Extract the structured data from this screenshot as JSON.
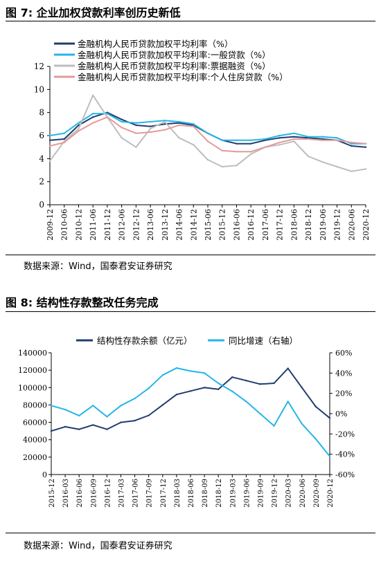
{
  "figure7": {
    "title": "图 7: 企业加权贷款利率创历史新低",
    "source": "数据来源：Wind，国泰君安证券研究",
    "chart_data": {
      "type": "line",
      "ylim": [
        0,
        12
      ],
      "y_ticks": [
        "0",
        "2",
        "4",
        "6",
        "8",
        "10",
        "12"
      ],
      "x_tick_labels": [
        "2009-12",
        "2010-06",
        "2010-12",
        "2011-06",
        "2011-12",
        "2012-06",
        "2012-12",
        "2013-06",
        "2013-12",
        "2014-06",
        "2014-12",
        "2015-06",
        "2015-12",
        "2016-06",
        "2016-12",
        "2017-06",
        "2017-12",
        "2018-06",
        "2018-12",
        "2019-06",
        "2019-12",
        "2020-06",
        "2020-12"
      ],
      "legend_placement": "top-left",
      "series": [
        {
          "name": "金融机构人民币贷款加权平均利率（%）",
          "color": "#1f3c6e",
          "values": [
            5.6,
            5.7,
            6.9,
            7.6,
            8.0,
            7.4,
            6.9,
            6.8,
            7.0,
            7.1,
            6.9,
            6.2,
            5.6,
            5.3,
            5.3,
            5.6,
            5.8,
            5.9,
            5.8,
            5.7,
            5.6,
            5.1,
            5.0
          ]
        },
        {
          "name": "金融机构人民币贷款加权平均利率:一般贷款（%）",
          "color": "#25b5e8",
          "values": [
            6.0,
            6.2,
            7.1,
            7.9,
            7.9,
            7.2,
            7.1,
            7.2,
            7.3,
            7.2,
            7.0,
            6.2,
            5.6,
            5.6,
            5.6,
            5.7,
            6.0,
            6.2,
            5.9,
            5.9,
            5.8,
            5.3,
            5.3
          ]
        },
        {
          "name": "金融机构人民币贷款加权平均利率:票据融资（%）",
          "color": "#bdbdbd",
          "values": [
            3.8,
            5.5,
            6.6,
            9.5,
            7.6,
            5.8,
            5.0,
            6.6,
            7.2,
            5.8,
            5.2,
            3.9,
            3.3,
            3.4,
            4.4,
            5.0,
            5.2,
            5.5,
            4.2,
            3.7,
            3.3,
            2.9,
            3.1
          ]
        },
        {
          "name": "金融机构人民币贷款加权平均利率:个人住房贷款（%）",
          "color": "#e39a9a",
          "values": [
            5.1,
            5.4,
            6.4,
            7.1,
            7.6,
            6.7,
            6.2,
            6.3,
            6.5,
            6.9,
            6.8,
            5.5,
            4.7,
            4.6,
            4.6,
            5.0,
            5.4,
            5.7,
            5.7,
            5.6,
            5.6,
            5.4,
            5.3
          ]
        }
      ]
    }
  },
  "figure8": {
    "title": "图 8: 结构性存款整改任务完成",
    "source": "数据来源：Wind，国泰君安证券研究",
    "chart_data": {
      "type": "line",
      "ylim_left": [
        0,
        140000
      ],
      "ylim_right": [
        -60,
        60
      ],
      "y_left_ticks": [
        "0",
        "20000",
        "40000",
        "60000",
        "80000",
        "100000",
        "120000",
        "140000"
      ],
      "y_right_ticks": [
        "-60%",
        "-40%",
        "-20%",
        "0%",
        "20%",
        "40%",
        "60%"
      ],
      "x_tick_labels": [
        "2015-12",
        "2016-03",
        "2016-06",
        "2016-09",
        "2016-12",
        "2017-03",
        "2017-06",
        "2017-09",
        "2017-12",
        "2018-03",
        "2018-06",
        "2018-09",
        "2018-12",
        "2019-03",
        "2019-06",
        "2019-09",
        "2019-12",
        "2020-03",
        "2020-06",
        "2020-09",
        "2020-12"
      ],
      "legend_placement": "top",
      "series": [
        {
          "name": "结构性存款余额（亿元）",
          "axis": "left",
          "color": "#1f3c6e",
          "values": [
            50000,
            55000,
            52000,
            57000,
            52000,
            60000,
            62000,
            68000,
            80000,
            92000,
            96000,
            100000,
            98000,
            112000,
            108000,
            104000,
            105000,
            122000,
            100000,
            78000,
            65000
          ]
        },
        {
          "name": "同比增速（右轴）",
          "axis": "right",
          "color": "#25b5e8",
          "values": [
            8,
            4,
            -2,
            8,
            -3,
            8,
            15,
            25,
            38,
            45,
            42,
            40,
            30,
            22,
            12,
            0,
            -12,
            12,
            -10,
            -25,
            -42
          ]
        }
      ]
    }
  }
}
